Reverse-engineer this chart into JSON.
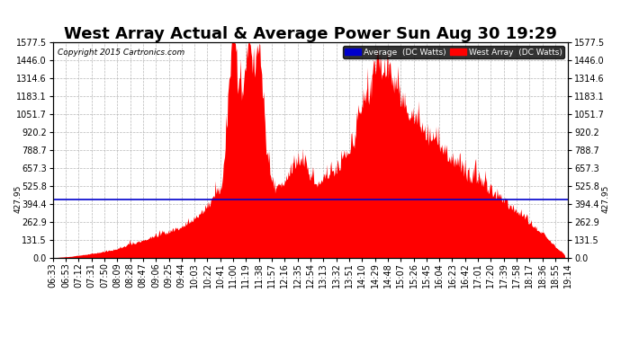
{
  "title": "West Array Actual & Average Power Sun Aug 30 19:29",
  "copyright": "Copyright 2015 Cartronics.com",
  "average_value": 427.95,
  "y_max": 1577.5,
  "y_min": 0.0,
  "yticks": [
    0.0,
    131.5,
    262.9,
    394.4,
    525.8,
    657.3,
    788.7,
    920.2,
    1051.7,
    1183.1,
    1314.6,
    1446.0,
    1577.5
  ],
  "xtick_labels": [
    "06:33",
    "06:53",
    "07:12",
    "07:31",
    "07:50",
    "08:09",
    "08:28",
    "08:47",
    "09:06",
    "09:25",
    "09:44",
    "10:03",
    "10:22",
    "10:41",
    "11:00",
    "11:19",
    "11:38",
    "11:57",
    "12:16",
    "12:35",
    "12:54",
    "13:13",
    "13:32",
    "13:51",
    "14:10",
    "14:29",
    "14:48",
    "15:07",
    "15:26",
    "15:45",
    "16:04",
    "16:23",
    "16:42",
    "17:01",
    "17:20",
    "17:39",
    "17:58",
    "18:17",
    "18:36",
    "18:55",
    "19:14"
  ],
  "legend_avg_label": "Average  (DC Watts)",
  "legend_west_label": "West Array  (DC Watts)",
  "avg_line_color": "#0000cc",
  "west_fill_color": "#ff0000",
  "background_color": "#ffffff",
  "grid_color": "#b0b0b0",
  "title_fontsize": 13,
  "axis_fontsize": 7,
  "left_label_427": "427.95",
  "right_label_427": "427.95"
}
